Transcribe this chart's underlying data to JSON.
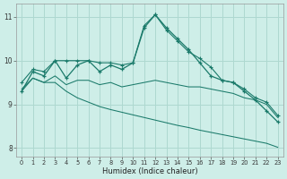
{
  "xlabel": "Humidex (Indice chaleur)",
  "background_color": "#ceeee8",
  "grid_color": "#aed8d0",
  "line_color": "#1a7a6a",
  "x_values": [
    0,
    1,
    2,
    3,
    4,
    5,
    6,
    7,
    8,
    9,
    10,
    11,
    12,
    13,
    14,
    15,
    16,
    17,
    18,
    19,
    20,
    21,
    22,
    23
  ],
  "y_main": [
    9.3,
    9.75,
    9.65,
    10.0,
    9.6,
    9.9,
    10.0,
    9.75,
    9.9,
    9.8,
    9.95,
    10.75,
    11.05,
    10.75,
    10.5,
    10.25,
    9.95,
    9.65,
    9.55,
    9.5,
    9.3,
    9.1,
    8.85,
    8.6
  ],
  "y_upper": [
    9.5,
    9.8,
    9.75,
    10.0,
    10.0,
    10.0,
    10.0,
    9.95,
    9.95,
    9.9,
    9.95,
    10.8,
    11.05,
    10.7,
    10.45,
    10.2,
    10.05,
    9.85,
    9.55,
    9.5,
    9.35,
    9.15,
    9.05,
    8.75
  ],
  "y_band_mid": [
    9.35,
    9.6,
    9.5,
    9.65,
    9.45,
    9.55,
    9.55,
    9.45,
    9.5,
    9.4,
    9.45,
    9.5,
    9.55,
    9.5,
    9.45,
    9.4,
    9.4,
    9.35,
    9.3,
    9.25,
    9.15,
    9.1,
    9.0,
    8.7
  ],
  "y_lower": [
    9.3,
    9.6,
    9.5,
    9.5,
    9.3,
    9.15,
    9.05,
    8.95,
    8.88,
    8.82,
    8.76,
    8.7,
    8.64,
    8.58,
    8.52,
    8.47,
    8.41,
    8.36,
    8.31,
    8.26,
    8.21,
    8.16,
    8.11,
    8.02
  ],
  "ylim": [
    7.8,
    11.3
  ],
  "yticks": [
    8,
    9,
    10,
    11
  ],
  "xlim": [
    -0.5,
    23.5
  ]
}
